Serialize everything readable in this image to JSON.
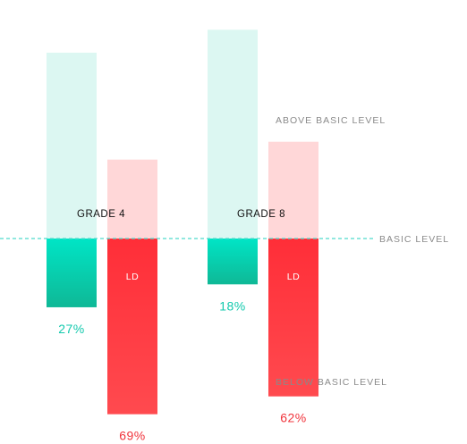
{
  "chart_data": {
    "type": "bar",
    "style": "diverging",
    "grid": false,
    "legend": "none",
    "colors": {
      "non_ld_above": "#dcf7f2",
      "non_ld_below_top": "#00e5c6",
      "non_ld_below_bottom": "#0fb896",
      "non_ld_value": "#12c9ad",
      "ld_above": "#ffd7d8",
      "ld_below_top": "#ff2e38",
      "ld_below_bottom": "#ff4a4f",
      "ld_value": "#f0333b",
      "baseline": "#4fd9cc"
    },
    "max_percent": 100,
    "groups": [
      {
        "label": "GRADE 4",
        "bars": [
          {
            "series": "non-ld",
            "label": "",
            "below_basic": 27,
            "below_label": "27%"
          },
          {
            "series": "ld",
            "label": "LD",
            "below_basic": 69,
            "below_label": "69%"
          }
        ]
      },
      {
        "label": "GRADE 8",
        "bars": [
          {
            "series": "non-ld",
            "label": "",
            "below_basic": 18,
            "below_label": "18%"
          },
          {
            "series": "ld",
            "label": "LD",
            "below_basic": 62,
            "below_label": "62%"
          }
        ]
      }
    ],
    "annotations": {
      "above": "ABOVE BASIC LEVEL",
      "baseline": "BASIC LEVEL",
      "below": "BELOW BASIC LEVEL"
    }
  }
}
